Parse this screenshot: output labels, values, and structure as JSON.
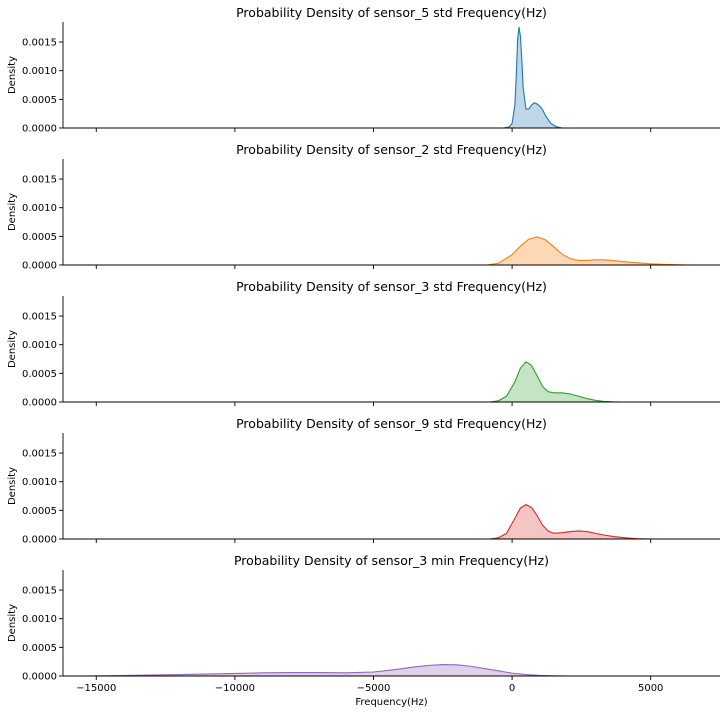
{
  "chart_data": {
    "type": "area",
    "xlabel": "Frequency(Hz)",
    "ylabel": "Density",
    "xlim": [
      -16200,
      7500
    ],
    "ylim": [
      0,
      0.00185
    ],
    "x_ticks": [
      -15000,
      -10000,
      -5000,
      0,
      5000
    ],
    "x_tick_labels": [
      "−15000",
      "−10000",
      "−5000",
      "0",
      "5000"
    ],
    "y_ticks": [
      0,
      0.0005,
      0.001,
      0.0015
    ],
    "y_tick_labels": [
      "0.0000",
      "0.0005",
      "0.0010",
      "0.0015"
    ],
    "grid": false,
    "panels": [
      {
        "title": "Probability Density of sensor_5 std Frequency(Hz)",
        "color": "#1f77b4",
        "fill": "#bcd3e7",
        "x": [
          -300,
          -100,
          0,
          100,
          150,
          200,
          250,
          300,
          350,
          400,
          500,
          600,
          700,
          800,
          900,
          1000,
          1100,
          1200,
          1400,
          1600,
          1800
        ],
        "y": [
          0,
          2e-05,
          8e-05,
          0.0004,
          0.0009,
          0.00155,
          0.00176,
          0.0016,
          0.0012,
          0.0007,
          0.00033,
          0.00033,
          0.0004,
          0.00044,
          0.00042,
          0.00038,
          0.00032,
          0.00022,
          8e-05,
          2e-05,
          0
        ]
      },
      {
        "title": "Probability Density of sensor_2 std Frequency(Hz)",
        "color": "#ff7f0e",
        "fill": "#ffd6b2",
        "x": [
          -900,
          -500,
          0,
          300,
          600,
          900,
          1200,
          1500,
          1800,
          2100,
          2400,
          2700,
          3000,
          3300,
          3600,
          4000,
          4500,
          5000,
          5500,
          6000,
          6400
        ],
        "y": [
          0,
          3e-05,
          0.00018,
          0.00033,
          0.00045,
          0.00049,
          0.00044,
          0.00032,
          0.00019,
          0.00011,
          8e-05,
          8e-05,
          9e-05,
          9e-05,
          8e-05,
          6e-05,
          4e-05,
          2e-05,
          1e-05,
          3e-06,
          0
        ]
      },
      {
        "title": "Probability Density of sensor_3 std Frequency(Hz)",
        "color": "#2ca02c",
        "fill": "#c2e2c2",
        "x": [
          -800,
          -500,
          -200,
          100,
          300,
          500,
          700,
          900,
          1100,
          1300,
          1500,
          1800,
          2100,
          2400,
          2700,
          3000,
          3300,
          3600,
          3900
        ],
        "y": [
          0,
          2e-05,
          0.0001,
          0.00035,
          0.00059,
          0.0007,
          0.00064,
          0.00046,
          0.00027,
          0.00018,
          0.00016,
          0.00016,
          0.00014,
          0.0001,
          6e-05,
          3e-05,
          1e-05,
          3e-06,
          0
        ]
      },
      {
        "title": "Probability Density of sensor_9 std Frequency(Hz)",
        "color": "#d62728",
        "fill": "#f3c2c2",
        "x": [
          -800,
          -500,
          -200,
          100,
          300,
          500,
          700,
          900,
          1100,
          1300,
          1500,
          1800,
          2100,
          2400,
          2700,
          3000,
          3300,
          3700,
          4100,
          4500,
          5000
        ],
        "y": [
          0,
          2e-05,
          0.0001,
          0.00036,
          0.00054,
          0.0006,
          0.00055,
          0.00041,
          0.00024,
          0.00014,
          0.0001,
          0.00011,
          0.00013,
          0.00014,
          0.00013,
          0.0001,
          7e-05,
          4e-05,
          2e-05,
          5e-06,
          0
        ]
      },
      {
        "title": "Probability Density of sensor_3 min Frequency(Hz)",
        "color": "#9467bd",
        "fill": "#dccfe9",
        "x": [
          -15500,
          -14000,
          -12000,
          -10000,
          -9000,
          -8000,
          -7000,
          -6000,
          -5000,
          -4000,
          -3500,
          -3000,
          -2500,
          -2000,
          -1500,
          -1000,
          -500,
          0,
          500,
          1000,
          1500,
          2000
        ],
        "y": [
          0,
          8e-06,
          2.5e-05,
          4.5e-05,
          5.5e-05,
          6e-05,
          6e-05,
          5.5e-05,
          7e-05,
          0.000125,
          0.00016,
          0.000185,
          0.0002,
          0.000195,
          0.00017,
          0.00013,
          9e-05,
          5e-05,
          2.5e-05,
          1e-05,
          3e-06,
          0
        ]
      }
    ]
  }
}
